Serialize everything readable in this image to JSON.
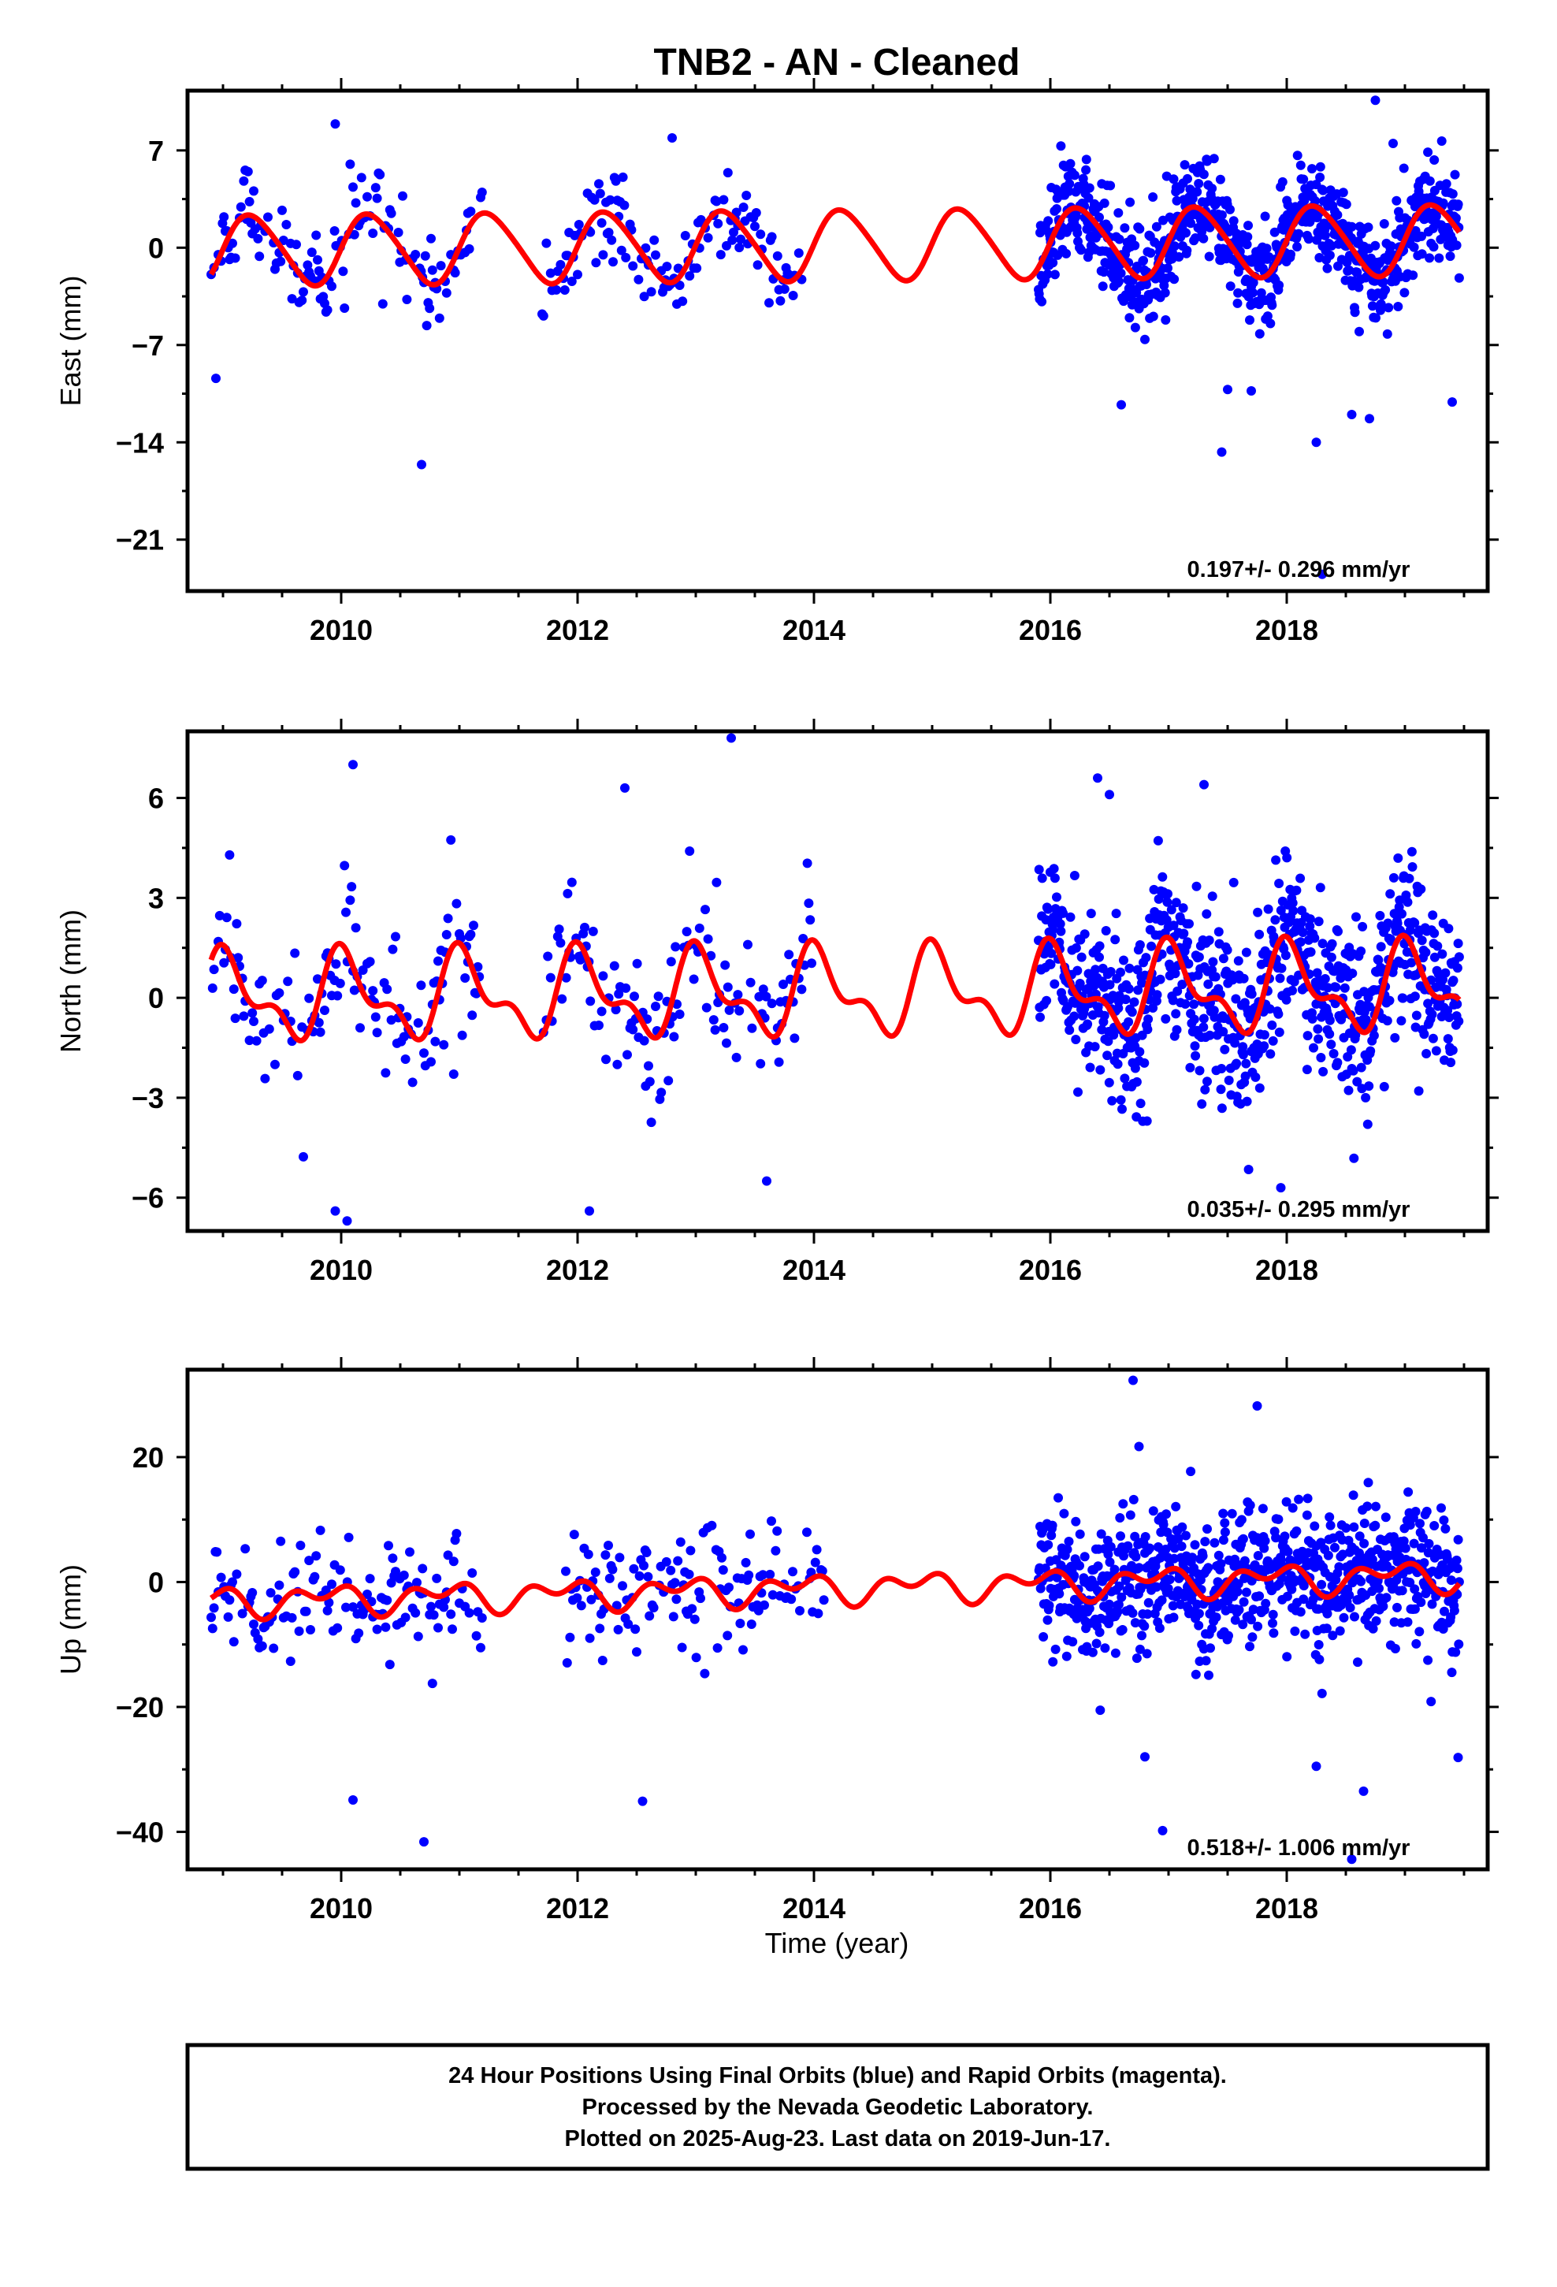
{
  "title": "TNB2  - AN - Cleaned",
  "xlabel": "Time (year)",
  "caption": {
    "lines": [
      "24 Hour Positions Using Final Orbits (blue) and Rapid Orbits (magenta).",
      "Processed by the Nevada Geodetic Laboratory.",
      "Plotted on 2025-Aug-23. Last data on 2019-Jun-17."
    ]
  },
  "colors": {
    "points": "#0000ff",
    "model": "#ff0000",
    "axes": "#000000"
  },
  "chart_data": [
    {
      "type": "scatter",
      "name": "east",
      "ylabel": "East (mm)",
      "xlim": [
        2008.7,
        2019.7
      ],
      "ylim": [
        -24.7,
        11.3
      ],
      "yticks": [
        7,
        0,
        -7,
        -14,
        -21
      ],
      "ytick_labels": [
        "7",
        "0",
        "−7",
        "−14",
        "−21"
      ],
      "xticks": [
        2010,
        2012,
        2014,
        2016,
        2018
      ],
      "xtick_labels": [
        "2010",
        "2012",
        "2014",
        "2016",
        "2018"
      ],
      "rate": "0.197+/- 0.296 mm/yr",
      "model": {
        "description": "annual + semiannual fit",
        "amp_annual": 2.5,
        "amp_semiannual": 0.3,
        "phase_annual": 0.0,
        "phase_semiannual": 0.2,
        "trend_start": -0.2,
        "trend_end": 0.6
      },
      "segments": [
        [
          2008.9,
          2011.2
        ],
        [
          2011.7,
          2013.9
        ],
        [
          2015.9,
          2019.46
        ]
      ],
      "point_density": 1.0,
      "scatter_sd": 1.8,
      "outliers": [
        [
          2008.94,
          -9.4
        ],
        [
          2010.68,
          -15.6
        ],
        [
          2016.6,
          -11.3
        ],
        [
          2017.45,
          -14.7
        ],
        [
          2017.5,
          -10.2
        ],
        [
          2017.7,
          -10.3
        ],
        [
          2018.25,
          -14.0
        ],
        [
          2018.3,
          -23.5
        ],
        [
          2018.55,
          -12.0
        ],
        [
          2018.7,
          -12.3
        ],
        [
          2019.4,
          -11.1
        ],
        [
          2009.95,
          8.9
        ],
        [
          2012.8,
          7.9
        ],
        [
          2018.75,
          10.6
        ],
        [
          2018.9,
          7.5
        ]
      ]
    },
    {
      "type": "scatter",
      "name": "north",
      "ylabel": "North (mm)",
      "xlim": [
        2008.7,
        2019.7
      ],
      "ylim": [
        -7.0,
        8.0
      ],
      "yticks": [
        6,
        3,
        0,
        -3,
        -6
      ],
      "ytick_labels": [
        "6",
        "3",
        "0",
        "−3",
        "−6"
      ],
      "xticks": [
        2010,
        2012,
        2014,
        2016,
        2018
      ],
      "xtick_labels": [
        "2010",
        "2012",
        "2014",
        "2016",
        "2018"
      ],
      "rate": "0.035+/- 0.295 mm/yr",
      "model": {
        "description": "annual + semiannual fit",
        "amp_annual": 1.1,
        "amp_semiannual": 0.6,
        "phase_annual": 1.3,
        "phase_semiannual": 2.1,
        "trend_start": 0.0,
        "trend_end": 0.3
      },
      "segments": [
        [
          2008.9,
          2011.2
        ],
        [
          2011.7,
          2014.0
        ],
        [
          2015.9,
          2019.46
        ]
      ],
      "point_density": 1.0,
      "scatter_sd": 1.3,
      "outliers": [
        [
          2010.1,
          7.0
        ],
        [
          2013.3,
          7.8
        ],
        [
          2012.4,
          6.3
        ],
        [
          2016.4,
          6.6
        ],
        [
          2016.5,
          6.1
        ],
        [
          2017.3,
          6.4
        ],
        [
          2009.95,
          -6.4
        ],
        [
          2010.05,
          -6.7
        ],
        [
          2012.1,
          -6.4
        ],
        [
          2017.95,
          -5.7
        ],
        [
          2013.6,
          -5.5
        ]
      ]
    },
    {
      "type": "scatter",
      "name": "up",
      "ylabel": "Up (mm)",
      "xlim": [
        2008.7,
        2019.7
      ],
      "ylim": [
        -46,
        34
      ],
      "yticks": [
        20,
        0,
        -20,
        -40
      ],
      "ytick_labels": [
        "20",
        "0",
        "−20",
        "−40"
      ],
      "xticks": [
        2010,
        2012,
        2014,
        2016,
        2018
      ],
      "xtick_labels": [
        "2010",
        "2012",
        "2014",
        "2016",
        "2018"
      ],
      "rate": "0.518+/- 1.006 mm/yr",
      "model": {
        "description": "annual + semiannual fit",
        "amp_annual": 1.6,
        "amp_semiannual": 1.5,
        "phase_annual": 2.4,
        "phase_semiannual": 0.5,
        "trend_start": -3.2,
        "trend_end": 1.2
      },
      "segments": [
        [
          2008.9,
          2011.2
        ],
        [
          2011.9,
          2014.1
        ],
        [
          2015.9,
          2019.46
        ]
      ],
      "point_density": 1.0,
      "scatter_sd": 5.5,
      "outliers": [
        [
          2016.7,
          32.3
        ],
        [
          2017.75,
          28.2
        ],
        [
          2016.75,
          21.7
        ],
        [
          2010.1,
          -34.9
        ],
        [
          2010.7,
          -41.6
        ],
        [
          2012.55,
          -35.1
        ],
        [
          2016.95,
          -39.8
        ],
        [
          2018.55,
          -44.4
        ],
        [
          2018.65,
          -33.5
        ],
        [
          2018.25,
          -29.5
        ],
        [
          2019.45,
          -28.1
        ],
        [
          2016.8,
          -28.0
        ]
      ]
    }
  ]
}
